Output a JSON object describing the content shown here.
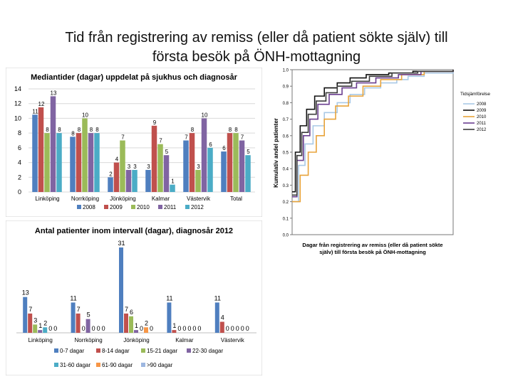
{
  "page": {
    "title_line1": "Tid från registrering av remiss (eller då patient sökte själv) till",
    "title_line2": "första besök på ÖNH-mottagning"
  },
  "colors": {
    "2008": "#4f7fbf",
    "2009": "#c0504d",
    "2010": "#9bbb59",
    "2011": "#8064a2",
    "2012": "#4bacc6",
    "2008_line": "#a9c9e6",
    "2009_line": "#111111",
    "2010_line": "#e8a33a",
    "2011_line": "#6a3e8f",
    "2012_line": "#3c3c3c"
  },
  "chart_data": [
    {
      "type": "bar",
      "title": "Mediantider (dagar) uppdelat på sjukhus och diagnosår",
      "categories": [
        "Linköping",
        "Norrköping",
        "Jönköping",
        "Kalmar",
        "Västervik",
        "Total"
      ],
      "ylim": [
        0,
        14
      ],
      "yticks": [
        "0",
        "2",
        "4",
        "6",
        "8",
        "10",
        "12",
        "14"
      ],
      "series": [
        {
          "name": "2008",
          "values": [
            10.5,
            7.5,
            2,
            3,
            7,
            5.5
          ],
          "labels": [
            "11",
            "8",
            "2",
            "3",
            "7",
            "6"
          ]
        },
        {
          "name": "2009",
          "values": [
            11.5,
            8,
            4,
            9,
            8,
            8
          ],
          "labels": [
            "12",
            "8",
            "4",
            "9",
            "8",
            "8"
          ]
        },
        {
          "name": "2010",
          "values": [
            8,
            10,
            7,
            6.5,
            3,
            8
          ],
          "labels": [
            "8",
            "10",
            "7",
            "7",
            "3",
            "8"
          ]
        },
        {
          "name": "2011",
          "values": [
            13,
            8,
            3,
            5,
            10,
            7
          ],
          "labels": [
            "13",
            "8",
            "3",
            "5",
            "10",
            "7"
          ]
        },
        {
          "name": "2012",
          "values": [
            8,
            8,
            3,
            1,
            6,
            5
          ],
          "labels": [
            "8",
            "8",
            "3",
            "1",
            "6",
            "5"
          ]
        }
      ],
      "legend_position": "bottom"
    },
    {
      "type": "bar",
      "title": "Antal patienter inom intervall (dagar), diagnosår 2012",
      "categories": [
        "Linköping",
        "Norrköping",
        "Jönköping",
        "Kalmar",
        "Västervik"
      ],
      "series": [
        {
          "name": "0-7 dagar",
          "values": [
            13,
            11,
            31,
            11,
            11
          ]
        },
        {
          "name": "8-14 dagar",
          "values": [
            7,
            7,
            7,
            1,
            4
          ]
        },
        {
          "name": "15-21 dagar",
          "values": [
            3,
            0,
            6,
            0,
            0
          ]
        },
        {
          "name": "22-30 dagar",
          "values": [
            1,
            5,
            1,
            0,
            0
          ]
        },
        {
          "name": "31-60 dagar",
          "values": [
            2,
            0,
            0,
            0,
            0
          ]
        },
        {
          "name": "61-90 dagar",
          "values": [
            0,
            0,
            2,
            0,
            0
          ]
        },
        {
          "name": ">90 dagar",
          "values": [
            0,
            0,
            0,
            0,
            0
          ]
        }
      ],
      "legend_position": "bottom"
    },
    {
      "type": "line",
      "title": "",
      "xlabel": "Dagar från registrering av remiss (eller då patient sökte själv) till första besök på ÖNH-mottagning",
      "ylabel": "Kumulativ andel patienter",
      "ylim": [
        0,
        1
      ],
      "yticks": [
        "0.0",
        "0.1",
        "0.2",
        "0.3",
        "0.4",
        "0.5",
        "0.6",
        "0.7",
        "0.8",
        "0.9",
        "1.0"
      ],
      "legend_title": "Tidsjämförelse",
      "legend_position": "right",
      "series": [
        {
          "name": "2008",
          "x": [
            0,
            0.04,
            0.08,
            0.13,
            0.2,
            0.28,
            0.36,
            0.45,
            0.55,
            0.65,
            0.72,
            0.82,
            1.0
          ],
          "values": [
            0.2,
            0.42,
            0.55,
            0.66,
            0.74,
            0.8,
            0.85,
            0.89,
            0.92,
            0.94,
            0.96,
            0.98,
            1.0
          ]
        },
        {
          "name": "2009",
          "x": [
            0,
            0.02,
            0.05,
            0.09,
            0.14,
            0.2,
            0.28,
            0.36,
            0.46,
            0.6,
            0.75,
            1.0
          ],
          "values": [
            0.26,
            0.5,
            0.66,
            0.76,
            0.84,
            0.89,
            0.92,
            0.95,
            0.97,
            0.98,
            0.99,
            1.0
          ]
        },
        {
          "name": "2010",
          "x": [
            0,
            0.05,
            0.1,
            0.15,
            0.2,
            0.27,
            0.35,
            0.44,
            0.55,
            0.68,
            0.82,
            1.0
          ],
          "values": [
            0.2,
            0.36,
            0.5,
            0.6,
            0.7,
            0.78,
            0.84,
            0.9,
            0.94,
            0.97,
            0.99,
            1.0
          ]
        },
        {
          "name": "2011",
          "x": [
            0,
            0.03,
            0.07,
            0.11,
            0.16,
            0.23,
            0.31,
            0.4,
            0.52,
            0.66,
            0.8,
            1.0
          ],
          "values": [
            0.23,
            0.45,
            0.6,
            0.7,
            0.79,
            0.85,
            0.89,
            0.92,
            0.95,
            0.97,
            0.99,
            1.0
          ]
        },
        {
          "name": "2012",
          "x": [
            0,
            0.03,
            0.06,
            0.1,
            0.15,
            0.21,
            0.28,
            0.37,
            0.48,
            0.62,
            0.78,
            1.0
          ],
          "values": [
            0.24,
            0.48,
            0.62,
            0.73,
            0.81,
            0.86,
            0.9,
            0.93,
            0.96,
            0.98,
            0.99,
            1.0
          ]
        }
      ]
    }
  ]
}
